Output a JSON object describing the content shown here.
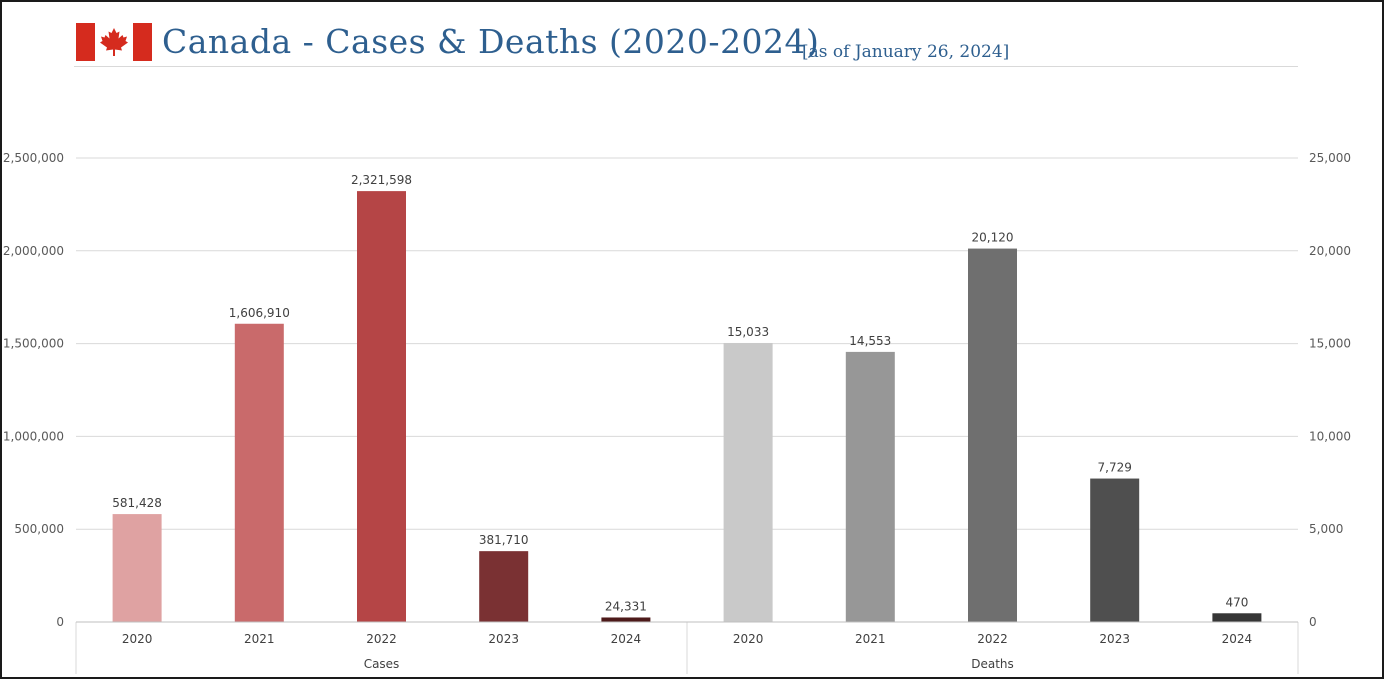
{
  "header": {
    "title": "Canada - Cases & Deaths (2020-2024)",
    "subtitle": "[as of January 26, 2024]",
    "flag": "canada-flag-icon",
    "title_color": "#2e5f8f"
  },
  "chart_data": {
    "type": "bar",
    "title": "Canada - Cases & Deaths (2020-2024)",
    "subtitle": "[as of January 26, 2024]",
    "grid": true,
    "legend": "none",
    "groups": [
      {
        "name": "Cases",
        "axis": "left",
        "categories": [
          "2020",
          "2021",
          "2022",
          "2023",
          "2024"
        ],
        "values": [
          581428,
          1606910,
          2321598,
          381710,
          24331
        ],
        "labels": [
          "581,428",
          "1,606,910",
          "2,321,598",
          "381,710",
          "24,331"
        ],
        "colors": [
          "#dfa2a2",
          "#c96a6b",
          "#b54546",
          "#7a3133",
          "#4d1a1a"
        ]
      },
      {
        "name": "Deaths",
        "axis": "right",
        "categories": [
          "2020",
          "2021",
          "2022",
          "2023",
          "2024"
        ],
        "values": [
          15033,
          14553,
          20120,
          7729,
          470
        ],
        "labels": [
          "15,033",
          "14,553",
          "20,120",
          "7,729",
          "470"
        ],
        "colors": [
          "#c9c9c9",
          "#979797",
          "#6f6f6f",
          "#4f4f4f",
          "#363636"
        ]
      }
    ],
    "y_left": {
      "ylim": [
        0,
        2500000
      ],
      "ticks": [
        0,
        500000,
        1000000,
        1500000,
        2000000,
        2500000
      ],
      "tick_labels": [
        "0",
        "500,000",
        "1,000,000",
        "1,500,000",
        "2,000,000",
        "2,500,000"
      ]
    },
    "y_right": {
      "ylim": [
        0,
        25000
      ],
      "ticks": [
        0,
        5000,
        10000,
        15000,
        20000,
        25000
      ],
      "tick_labels": [
        "0",
        "5,000",
        "10,000",
        "15,000",
        "20,000",
        "25,000"
      ]
    }
  }
}
